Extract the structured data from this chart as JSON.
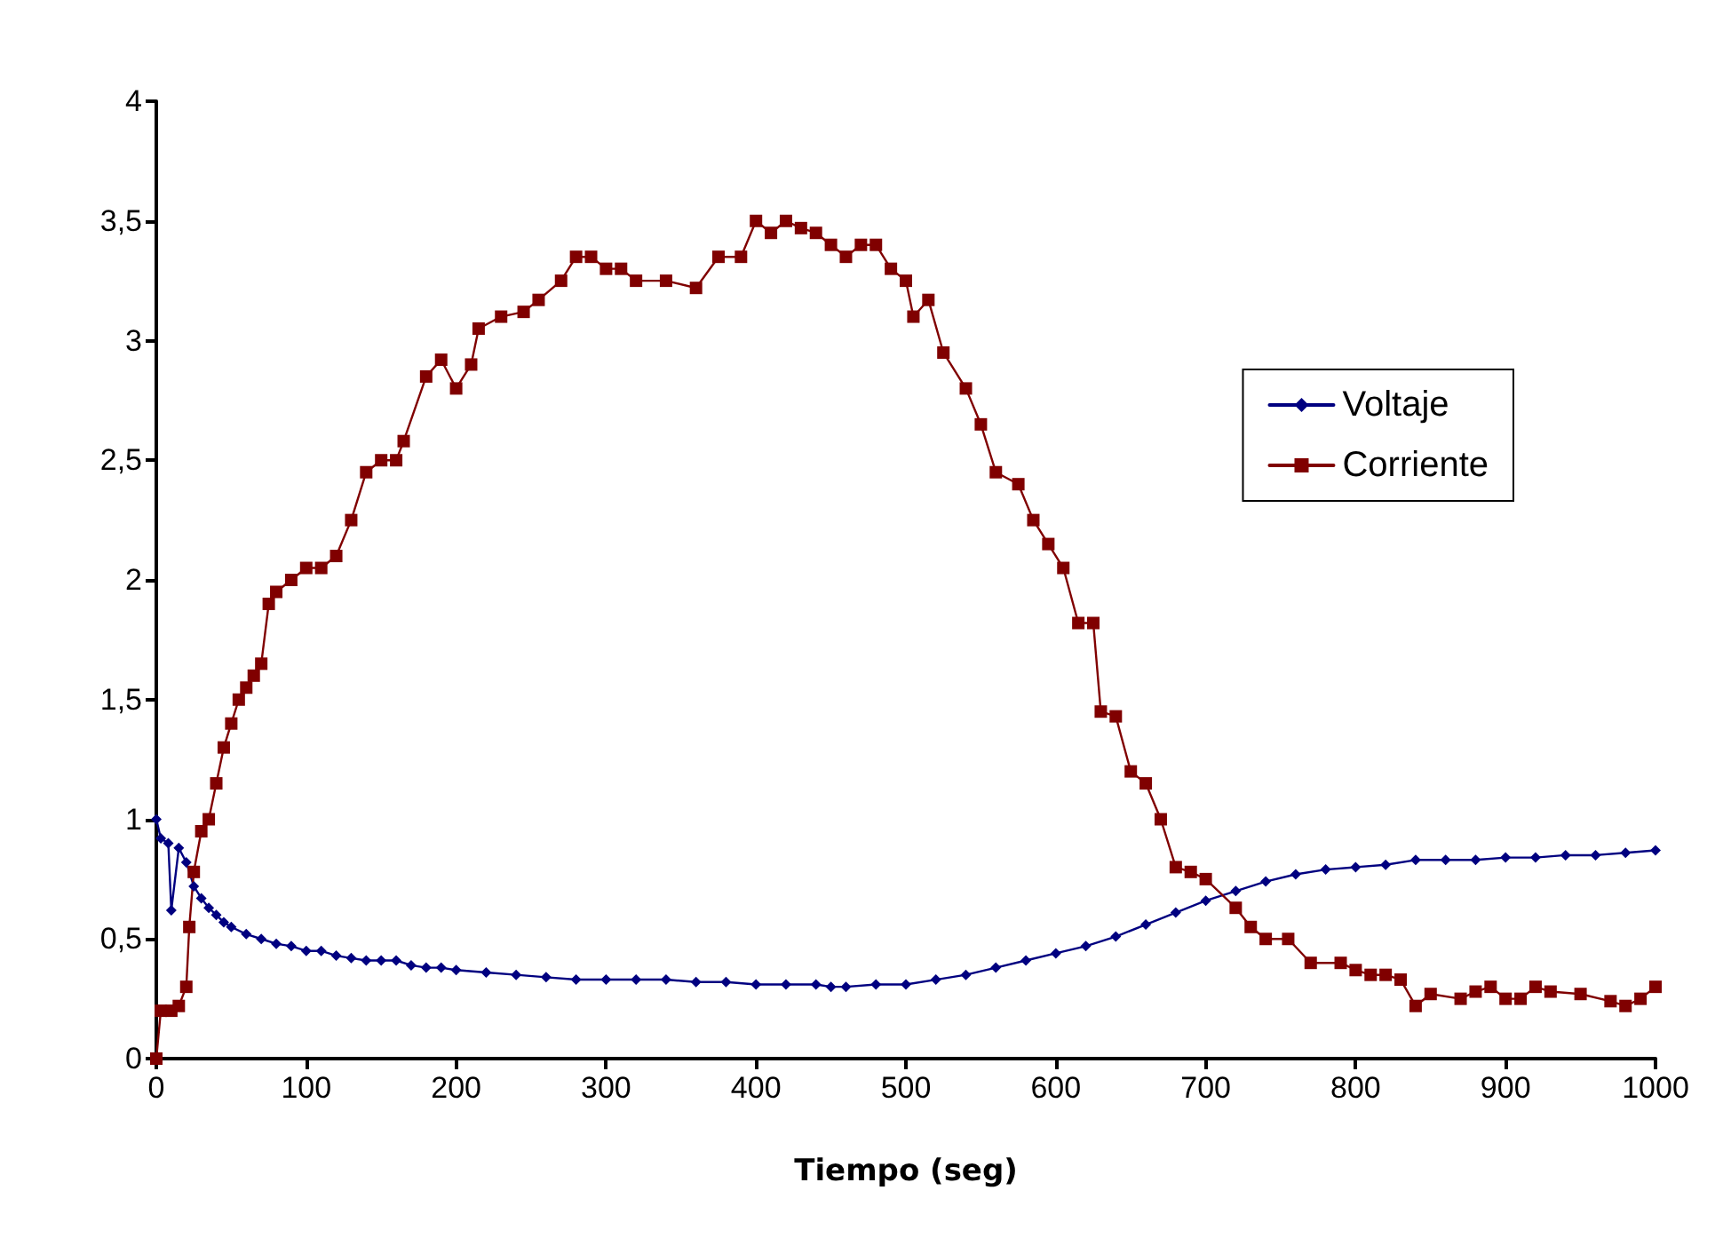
{
  "chart_data": {
    "type": "line",
    "xlabel": "Tiempo (seg)",
    "xlim": [
      0,
      1000
    ],
    "xticks": [
      0,
      100,
      200,
      300,
      400,
      500,
      600,
      700,
      800,
      900,
      1000
    ],
    "ylim": [
      0,
      4
    ],
    "yticks": [
      0,
      {
        "value": 0.5,
        "label": "0,5"
      },
      1,
      {
        "value": 1.5,
        "label": "1,5"
      },
      2,
      {
        "value": 2.5,
        "label": "2,5"
      },
      3,
      {
        "value": 3.5,
        "label": "3,5"
      },
      4
    ],
    "grid": false,
    "legend": "top right",
    "series": [
      {
        "name": "Voltaje",
        "color": "#000080",
        "marker": "diamond",
        "x": [
          0,
          3,
          8,
          10,
          15,
          20,
          25,
          30,
          35,
          40,
          45,
          50,
          60,
          70,
          80,
          90,
          100,
          110,
          120,
          130,
          140,
          150,
          160,
          170,
          180,
          190,
          200,
          220,
          240,
          260,
          280,
          300,
          320,
          340,
          360,
          380,
          400,
          420,
          440,
          450,
          460,
          480,
          500,
          520,
          540,
          560,
          580,
          600,
          620,
          640,
          660,
          680,
          700,
          720,
          740,
          760,
          780,
          800,
          820,
          840,
          860,
          880,
          900,
          920,
          940,
          960,
          980,
          1000
        ],
        "values": [
          1.0,
          0.92,
          0.9,
          0.62,
          0.88,
          0.82,
          0.72,
          0.67,
          0.63,
          0.6,
          0.57,
          0.55,
          0.52,
          0.5,
          0.48,
          0.47,
          0.45,
          0.45,
          0.43,
          0.42,
          0.41,
          0.41,
          0.41,
          0.39,
          0.38,
          0.38,
          0.37,
          0.36,
          0.35,
          0.34,
          0.33,
          0.33,
          0.33,
          0.33,
          0.32,
          0.32,
          0.31,
          0.31,
          0.31,
          0.3,
          0.3,
          0.31,
          0.31,
          0.33,
          0.35,
          0.38,
          0.41,
          0.44,
          0.47,
          0.51,
          0.56,
          0.61,
          0.66,
          0.7,
          0.74,
          0.77,
          0.79,
          0.8,
          0.81,
          0.83,
          0.83,
          0.83,
          0.84,
          0.84,
          0.85,
          0.85,
          0.86,
          0.87
        ]
      },
      {
        "name": "Corriente",
        "color": "#800000",
        "marker": "square",
        "x": [
          0,
          3,
          10,
          15,
          20,
          22,
          25,
          30,
          35,
          40,
          45,
          50,
          55,
          60,
          65,
          70,
          75,
          80,
          90,
          100,
          110,
          120,
          130,
          140,
          150,
          160,
          165,
          180,
          190,
          200,
          210,
          215,
          230,
          245,
          255,
          270,
          280,
          290,
          300,
          310,
          320,
          340,
          360,
          375,
          390,
          400,
          410,
          420,
          430,
          440,
          450,
          460,
          470,
          480,
          490,
          500,
          505,
          515,
          525,
          540,
          550,
          560,
          575,
          585,
          595,
          605,
          615,
          625,
          630,
          640,
          650,
          660,
          670,
          680,
          690,
          700,
          720,
          730,
          740,
          755,
          770,
          790,
          800,
          810,
          820,
          830,
          840,
          850,
          870,
          880,
          890,
          900,
          910,
          920,
          930,
          950,
          970,
          980,
          990,
          1000
        ],
        "values": [
          0,
          0.2,
          0.2,
          0.22,
          0.3,
          0.55,
          0.78,
          0.95,
          1.0,
          1.15,
          1.3,
          1.4,
          1.5,
          1.55,
          1.6,
          1.65,
          1.9,
          1.95,
          2.0,
          2.05,
          2.05,
          2.1,
          2.25,
          2.45,
          2.5,
          2.5,
          2.58,
          2.85,
          2.92,
          2.8,
          2.9,
          3.05,
          3.1,
          3.12,
          3.17,
          3.25,
          3.35,
          3.35,
          3.3,
          3.3,
          3.25,
          3.25,
          3.22,
          3.35,
          3.35,
          3.5,
          3.45,
          3.5,
          3.47,
          3.45,
          3.4,
          3.35,
          3.4,
          3.4,
          3.3,
          3.25,
          3.1,
          3.17,
          2.95,
          2.8,
          2.65,
          2.45,
          2.4,
          2.25,
          2.15,
          2.05,
          1.82,
          1.82,
          1.45,
          1.43,
          1.2,
          1.15,
          1.0,
          0.8,
          0.78,
          0.75,
          0.63,
          0.55,
          0.5,
          0.5,
          0.4,
          0.4,
          0.37,
          0.35,
          0.35,
          0.33,
          0.22,
          0.27,
          0.25,
          0.28,
          0.3,
          0.25,
          0.25,
          0.3,
          0.28,
          0.27,
          0.24,
          0.22,
          0.25,
          0.3
        ]
      }
    ]
  }
}
